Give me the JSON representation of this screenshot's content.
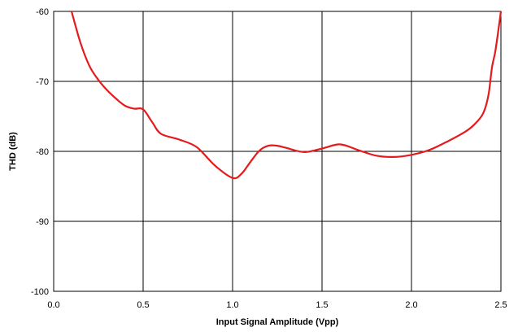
{
  "chart_data": {
    "type": "line",
    "title": "",
    "xlabel": "Input Signal Amplitude (Vpp)",
    "ylabel": "THD (dB)",
    "xlim": [
      0.0,
      2.5
    ],
    "ylim": [
      -100,
      -60
    ],
    "xticks": [
      0.0,
      0.5,
      1.0,
      1.5,
      2.0,
      2.5
    ],
    "xtick_labels": [
      "0.0",
      "0.5",
      "1.0",
      "1.5",
      "2.0",
      "2.5"
    ],
    "yticks": [
      -100,
      -90,
      -80,
      -70,
      -60
    ],
    "ytick_labels": [
      "-100",
      "-90",
      "-80",
      "-70",
      "-60"
    ],
    "grid": true,
    "legend": "none",
    "series": [
      {
        "color": "#e41a1c",
        "x": [
          0.1,
          0.15,
          0.2,
          0.25,
          0.3,
          0.35,
          0.4,
          0.45,
          0.5,
          0.55,
          0.6,
          0.7,
          0.8,
          0.9,
          1.0,
          1.05,
          1.1,
          1.15,
          1.2,
          1.25,
          1.3,
          1.4,
          1.5,
          1.6,
          1.7,
          1.8,
          1.9,
          2.0,
          2.1,
          2.2,
          2.3,
          2.35,
          2.4,
          2.43,
          2.45,
          2.47,
          2.5
        ],
        "y": [
          -60.0,
          -64.5,
          -67.8,
          -69.8,
          -71.3,
          -72.5,
          -73.5,
          -73.9,
          -74.0,
          -75.8,
          -77.5,
          -78.3,
          -79.4,
          -82.0,
          -83.8,
          -83.2,
          -81.5,
          -79.9,
          -79.2,
          -79.2,
          -79.5,
          -80.1,
          -79.6,
          -79.0,
          -79.8,
          -80.6,
          -80.8,
          -80.5,
          -79.8,
          -78.6,
          -77.2,
          -76.2,
          -74.6,
          -72.0,
          -68.0,
          -65.5,
          -60.0
        ]
      }
    ]
  }
}
